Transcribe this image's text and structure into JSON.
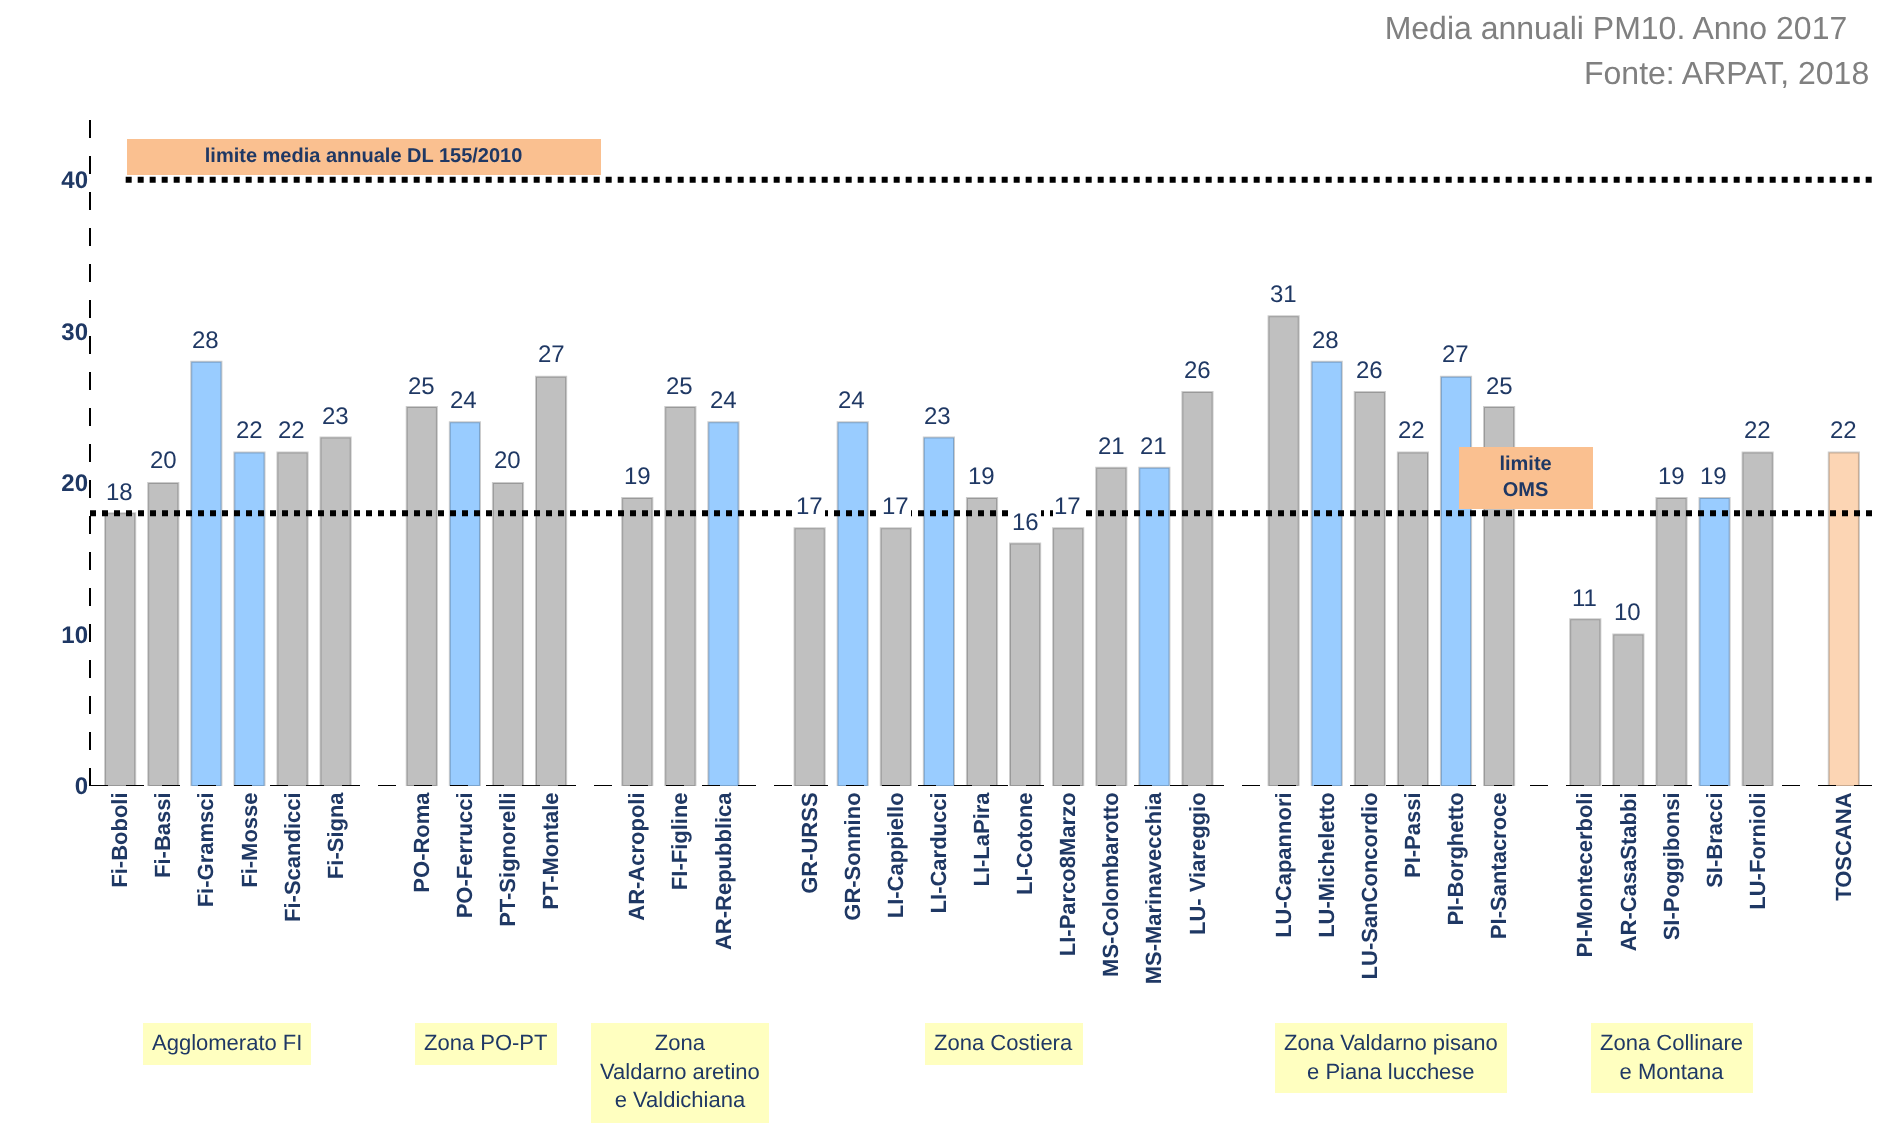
{
  "chart_data": {
    "type": "bar",
    "title": "Media annuali PM10. Anno 2017",
    "categories": [
      "Fi-Boboli",
      "Fi-Bassi",
      "Fi-Gramsci",
      "Fi-Mosse",
      "Fi-Scandicci",
      "Fi-Signa",
      null,
      "PO-Roma",
      "PO-Ferrucci",
      "PT-Signorelli",
      "PT-Montale",
      null,
      "AR-Acropoli",
      "FI-Figline",
      "AR-Repubblica",
      null,
      "GR-URSS",
      "GR-Sonnino",
      "LI-Cappiello",
      "LI-Carducci",
      "LI-LaPira",
      "LI-Cotone",
      "LI-Parco8Marzo",
      "MS-Colombarotto",
      "MS-Marinavecchia",
      "LU- Viareggio",
      null,
      "LU-Capannori",
      "LU-Micheletto",
      "LU-SanConcordio",
      "PI-Passi",
      "PI-Borghetto",
      "PI-Santacroce",
      null,
      "PI-Montecerboli",
      "AR-CasaStabbi",
      "SI-Poggibonsi",
      "SI-Bracci",
      "LU-Fornioli",
      null,
      "TOSCANA"
    ],
    "values": [
      18,
      20,
      28,
      22,
      22,
      23,
      null,
      25,
      24,
      20,
      27,
      null,
      19,
      25,
      24,
      null,
      17,
      24,
      17,
      23,
      19,
      16,
      17,
      21,
      21,
      26,
      null,
      31,
      28,
      26,
      22,
      27,
      25,
      null,
      11,
      10,
      19,
      19,
      22,
      null,
      22
    ],
    "colors": [
      "#c0c0c0",
      "#c0c0c0",
      "#99ccff",
      "#99ccff",
      "#c0c0c0",
      "#c0c0c0",
      null,
      "#c0c0c0",
      "#99ccff",
      "#c0c0c0",
      "#c0c0c0",
      null,
      "#c0c0c0",
      "#c0c0c0",
      "#99ccff",
      null,
      "#c0c0c0",
      "#99ccff",
      "#c0c0c0",
      "#99ccff",
      "#c0c0c0",
      "#c0c0c0",
      "#c0c0c0",
      "#c0c0c0",
      "#99ccff",
      "#c0c0c0",
      null,
      "#c0c0c0",
      "#99ccff",
      "#c0c0c0",
      "#c0c0c0",
      "#99ccff",
      "#c0c0c0",
      null,
      "#c0c0c0",
      "#c0c0c0",
      "#c0c0c0",
      "#99ccff",
      "#c0c0c0",
      null,
      "#fcd5b4"
    ],
    "data_labels": true,
    "ylim": [
      0,
      45
    ],
    "yticks": [
      0,
      10,
      20,
      30,
      40
    ],
    "grid": false,
    "legend": false,
    "ref_lines": [
      {
        "axis": "y",
        "value": 40,
        "label": "limite media annuale DL 155/2010",
        "color": "#000000",
        "line_style": "dotted"
      },
      {
        "axis": "y",
        "value": 18,
        "label": "limite\nOMS",
        "color": "#000000",
        "line_style": "dotted"
      }
    ],
    "annotations": [
      "Agglomerato FI",
      "Zona PO-PT",
      "Zona\nValdarno aretino\ne Valdichiana",
      "Zona Costiera",
      "Zona Valdarno pisano\ne Piana lucchese",
      "Zona Collinare\ne Montana",
      "Fonte: ARPAT, 2018"
    ]
  }
}
